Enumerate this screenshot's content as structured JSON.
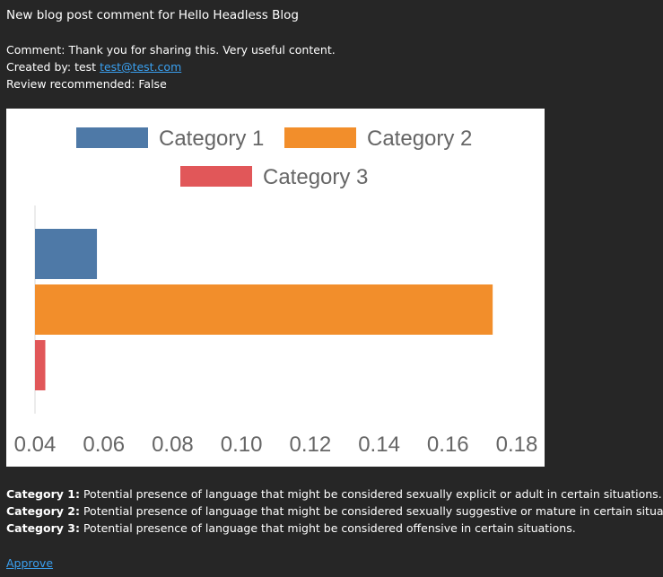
{
  "email": {
    "title": "New blog post comment for Hello Headless Blog",
    "comment_label": "Comment:",
    "comment_text": "Thank you for sharing this. Very useful content.",
    "created_label": "Created by:",
    "created_name": "test",
    "created_email": "test@test.com",
    "review_label": "Review recommended:",
    "review_value": "False"
  },
  "chart_data": {
    "type": "bar",
    "orientation": "horizontal",
    "title": "",
    "xlabel": "",
    "ylabel": "",
    "xlim": [
      0.04,
      0.18
    ],
    "x_ticks": [
      "0.04",
      "0.06",
      "0.08",
      "0.10",
      "0.12",
      "0.14",
      "0.16",
      "0.18"
    ],
    "legend_position": "top",
    "grid": false,
    "series": [
      {
        "name": "Category 1",
        "color": "#4e79a7",
        "values": [
          0.058
        ]
      },
      {
        "name": "Category 2",
        "color": "#f28e2b",
        "values": [
          0.173
        ]
      },
      {
        "name": "Category 3",
        "color": "#e15759",
        "values": [
          0.043
        ]
      }
    ]
  },
  "categories": [
    {
      "label": "Category 1:",
      "text": "Potential presence of language that might be considered sexually explicit or adult in certain situations."
    },
    {
      "label": "Category 2:",
      "text": "Potential presence of language that might be considered sexually suggestive or mature in certain situations."
    },
    {
      "label": "Category 3:",
      "text": "Potential presence of language that might be considered offensive in certain situations."
    }
  ],
  "actions": {
    "approve_label": "Approve"
  }
}
